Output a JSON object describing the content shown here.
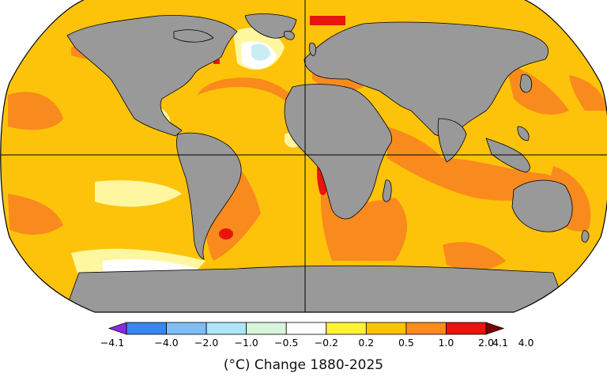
{
  "map": {
    "projection": "robinson",
    "land_color": "#999999",
    "ocean_base_color": "#fdc30a",
    "graticule": "equator and prime meridian"
  },
  "colorbar": {
    "levels": [
      "−4.1",
      "−4.0",
      "−2.0",
      "−1.0",
      "−0.5",
      "−0.2",
      "0.2",
      "0.5",
      "1.0",
      "2.0",
      "4.0",
      "4.1"
    ],
    "colors": [
      "#8a2be2",
      "#3a86f0",
      "#7fbef5",
      "#aee6f7",
      "#d8f5dc",
      "#ffffff",
      "#fff23a",
      "#fdc30a",
      "#f98a1d",
      "#e8150f",
      "#7a0000"
    ],
    "caption": "(°C) Change 1880-2025"
  }
}
